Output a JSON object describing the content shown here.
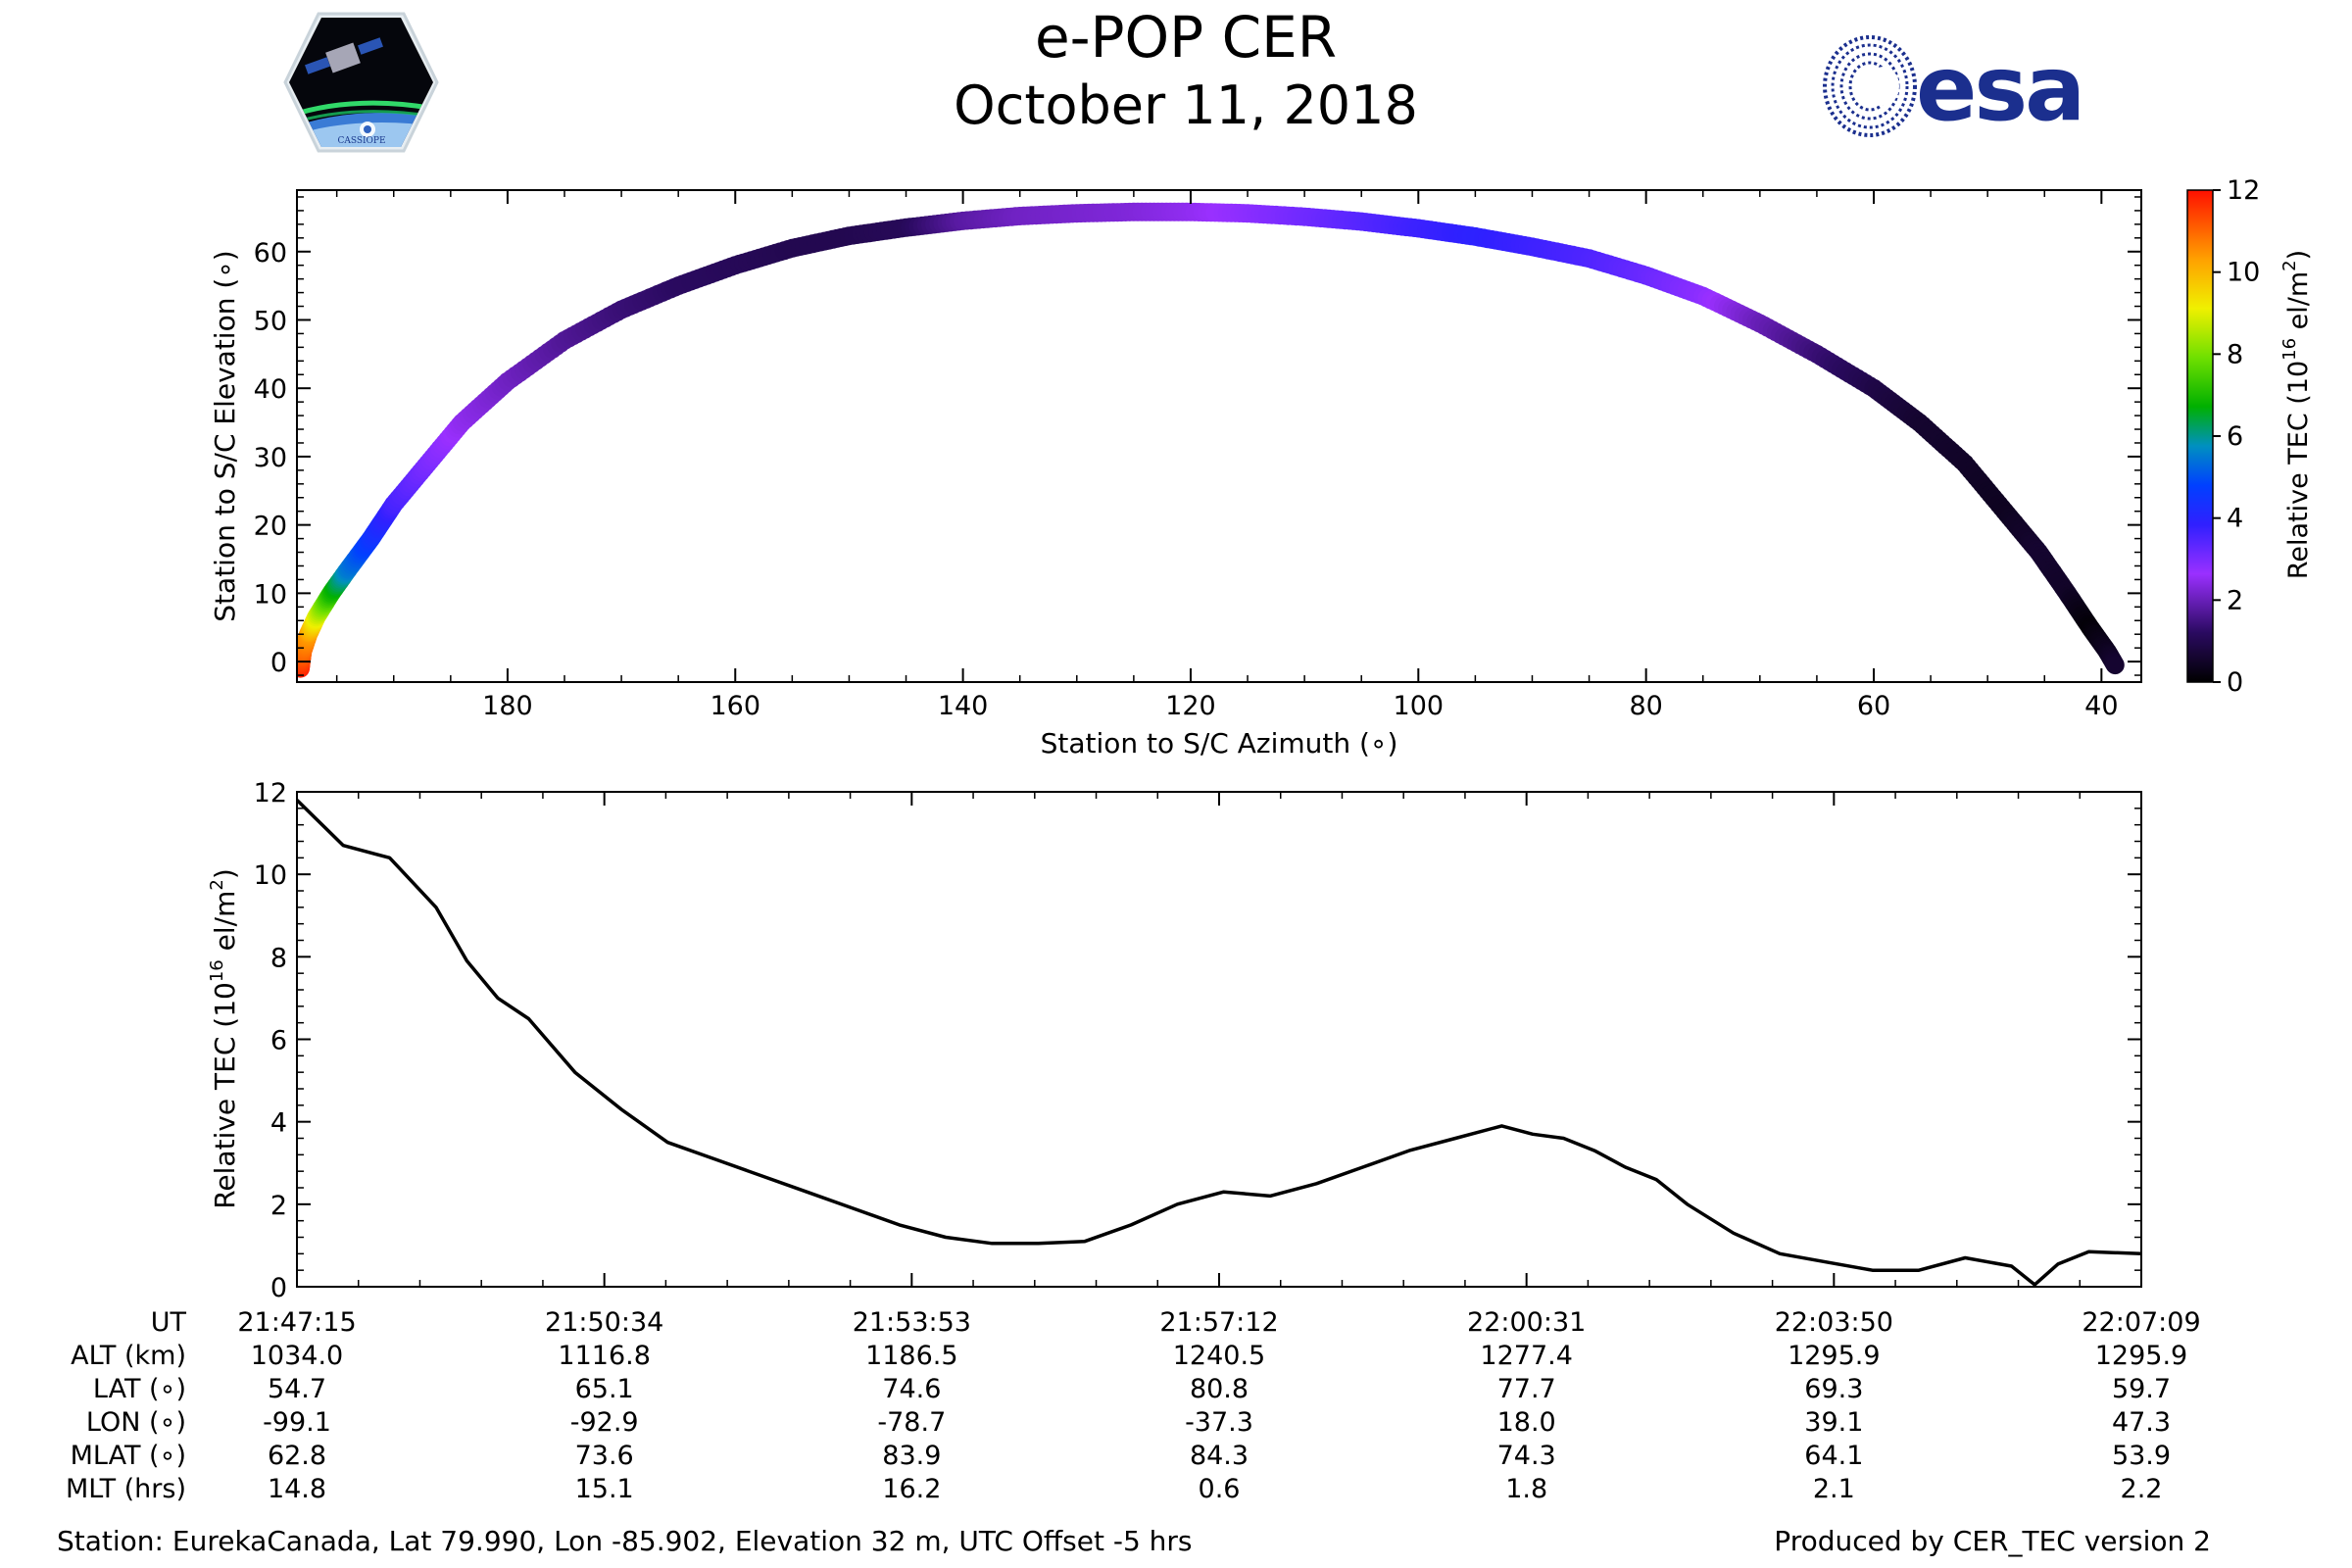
{
  "header": {
    "title": "e-POP CER",
    "date": "October 11, 2018",
    "esa_logo_text": "esa",
    "cassiope_logo_text": "CASSIOPE"
  },
  "chart_data": [
    {
      "type": "scatter",
      "xlabel": "Station to S/C Azimuth (∘)",
      "ylabel": "Station to S/C Elevation (∘)",
      "xlim": [
        198.5,
        36.5
      ],
      "ylim": [
        -3,
        69
      ],
      "x_ticks": [
        180,
        160,
        140,
        120,
        100,
        80,
        60,
        40
      ],
      "y_ticks": [
        0,
        10,
        20,
        30,
        40,
        50,
        60
      ],
      "color_by": "Relative TEC",
      "colorbar": {
        "label": "Relative TEC (10",
        "label_sup": "16",
        "label_unit": " el/m",
        "label_sup2": "2",
        "label_end": ")",
        "range": [
          0,
          12
        ],
        "ticks": [
          0,
          2,
          4,
          6,
          8,
          10,
          12
        ],
        "colormap": "gnuplot2-like: black - indigo - blue - green - yellow - red"
      },
      "points": [
        {
          "az": 198.2,
          "el": -1.0,
          "tec": 11.8
        },
        {
          "az": 198.0,
          "el": 1.5,
          "tec": 11.0
        },
        {
          "az": 197.5,
          "el": 4.0,
          "tec": 10.4
        },
        {
          "az": 196.8,
          "el": 6.5,
          "tec": 9.0
        },
        {
          "az": 195.5,
          "el": 10.0,
          "tec": 7.0
        },
        {
          "az": 194.0,
          "el": 13.5,
          "tec": 5.5
        },
        {
          "az": 192.0,
          "el": 18.0,
          "tec": 4.5
        },
        {
          "az": 190.0,
          "el": 23.0,
          "tec": 3.6
        },
        {
          "az": 187.0,
          "el": 29.0,
          "tec": 3.0
        },
        {
          "az": 184.0,
          "el": 35.0,
          "tec": 2.5
        },
        {
          "az": 180.0,
          "el": 41.0,
          "tec": 2.1
        },
        {
          "az": 175.0,
          "el": 47.0,
          "tec": 1.7
        },
        {
          "az": 170.0,
          "el": 51.5,
          "tec": 1.4
        },
        {
          "az": 165.0,
          "el": 55.0,
          "tec": 1.2
        },
        {
          "az": 160.0,
          "el": 58.0,
          "tec": 1.1
        },
        {
          "az": 155.0,
          "el": 60.5,
          "tec": 1.0
        },
        {
          "az": 150.0,
          "el": 62.3,
          "tec": 1.0
        },
        {
          "az": 145.0,
          "el": 63.5,
          "tec": 1.1
        },
        {
          "az": 140.0,
          "el": 64.5,
          "tec": 1.8
        },
        {
          "az": 135.0,
          "el": 65.2,
          "tec": 2.1
        },
        {
          "az": 130.0,
          "el": 65.6,
          "tec": 2.2
        },
        {
          "az": 125.0,
          "el": 65.8,
          "tec": 2.3
        },
        {
          "az": 120.0,
          "el": 65.8,
          "tec": 2.5
        },
        {
          "az": 115.0,
          "el": 65.6,
          "tec": 2.8
        },
        {
          "az": 110.0,
          "el": 65.1,
          "tec": 3.1
        },
        {
          "az": 105.0,
          "el": 64.4,
          "tec": 3.4
        },
        {
          "az": 100.0,
          "el": 63.4,
          "tec": 3.7
        },
        {
          "az": 95.0,
          "el": 62.2,
          "tec": 3.9
        },
        {
          "az": 90.0,
          "el": 60.7,
          "tec": 3.7
        },
        {
          "az": 85.0,
          "el": 59.0,
          "tec": 3.5
        },
        {
          "az": 80.0,
          "el": 56.5,
          "tec": 3.2
        },
        {
          "az": 75.0,
          "el": 53.5,
          "tec": 2.8
        },
        {
          "az": 70.0,
          "el": 49.5,
          "tec": 2.0
        },
        {
          "az": 65.0,
          "el": 45.0,
          "tec": 1.4
        },
        {
          "az": 60.0,
          "el": 40.0,
          "tec": 0.9
        },
        {
          "az": 56.0,
          "el": 35.0,
          "tec": 0.6
        },
        {
          "az": 52.0,
          "el": 29.0,
          "tec": 0.5
        },
        {
          "az": 48.5,
          "el": 22.0,
          "tec": 0.4
        },
        {
          "az": 45.5,
          "el": 16.0,
          "tec": 0.6
        },
        {
          "az": 43.0,
          "el": 10.0,
          "tec": 0.5
        },
        {
          "az": 41.0,
          "el": 5.0,
          "tec": 0.1
        },
        {
          "az": 39.5,
          "el": 1.5,
          "tec": 0.4
        },
        {
          "az": 38.8,
          "el": -0.5,
          "tec": 0.6
        }
      ]
    },
    {
      "type": "line",
      "xlabel": "",
      "ylabel": "Relative TEC (10",
      "ylabel_sup": "16",
      "ylabel_unit": " el/m",
      "ylabel_sup2": "2",
      "ylabel_end": ")",
      "xlim": [
        0,
        1194
      ],
      "ylim": [
        0,
        12
      ],
      "y_ticks": [
        0,
        2,
        4,
        6,
        8,
        10,
        12
      ],
      "x_seconds_from_first_tick": [
        0,
        30,
        60,
        90,
        110,
        130,
        150,
        180,
        210,
        240,
        270,
        300,
        330,
        360,
        390,
        420,
        450,
        480,
        510,
        540,
        570,
        600,
        630,
        660,
        690,
        720,
        750,
        780,
        800,
        820,
        840,
        860,
        880,
        900,
        930,
        960,
        990,
        1020,
        1050,
        1080,
        1110,
        1125,
        1140,
        1160,
        1194
      ],
      "tec": [
        11.8,
        10.7,
        10.4,
        9.2,
        7.9,
        7.0,
        6.5,
        5.2,
        4.3,
        3.5,
        3.1,
        2.7,
        2.3,
        1.9,
        1.5,
        1.2,
        1.05,
        1.05,
        1.1,
        1.5,
        2.0,
        2.3,
        2.2,
        2.5,
        2.9,
        3.3,
        3.6,
        3.9,
        3.7,
        3.6,
        3.3,
        2.9,
        2.6,
        2.0,
        1.3,
        0.8,
        0.6,
        0.4,
        0.4,
        0.7,
        0.5,
        0.05,
        0.55,
        0.85,
        0.8
      ]
    }
  ],
  "table": {
    "row_labels": [
      "UT",
      "ALT (km)",
      "LAT (∘)",
      "LON (∘)",
      "MLAT (∘)",
      "MLT (hrs)"
    ],
    "columns": [
      [
        "21:47:15",
        "1034.0",
        "54.7",
        "-99.1",
        "62.8",
        "14.8"
      ],
      [
        "21:50:34",
        "1116.8",
        "65.1",
        "-92.9",
        "73.6",
        "15.1"
      ],
      [
        "21:53:53",
        "1186.5",
        "74.6",
        "-78.7",
        "83.9",
        "16.2"
      ],
      [
        "21:57:12",
        "1240.5",
        "80.8",
        "-37.3",
        "84.3",
        "0.6"
      ],
      [
        "22:00:31",
        "1277.4",
        "77.7",
        "18.0",
        "74.3",
        "1.8"
      ],
      [
        "22:03:50",
        "1295.9",
        "69.3",
        "39.1",
        "64.1",
        "2.1"
      ],
      [
        "22:07:09",
        "1295.9",
        "59.7",
        "47.3",
        "53.9",
        "2.2"
      ]
    ]
  },
  "footer": {
    "station": "Station: EurekaCanada, Lat 79.990, Lon -85.902, Elevation 32 m, UTC Offset -5 hrs",
    "produced_by": "Produced by CER_TEC version 2"
  },
  "colors": {
    "esa_blue": "#1b2f8e",
    "line": "#000000"
  }
}
